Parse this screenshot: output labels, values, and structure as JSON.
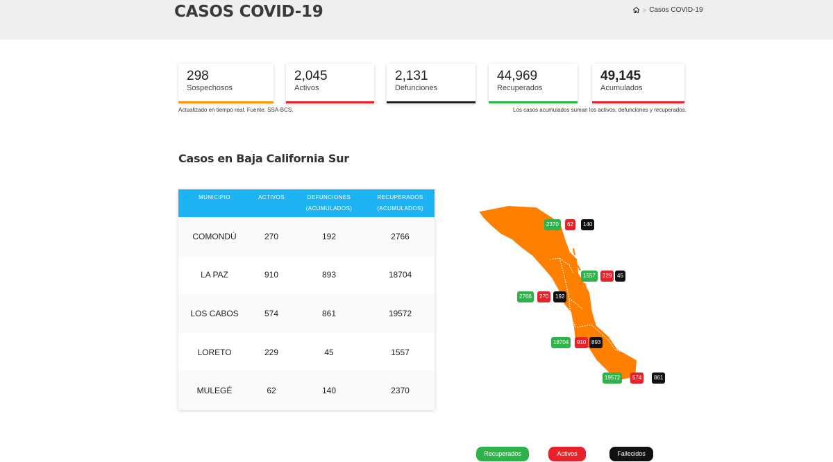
{
  "header": {
    "title": "CASOS COVID-19",
    "breadcrumb_current": "Casos COVID-19",
    "breadcrumb_sep": ">"
  },
  "stats": [
    {
      "value": "298",
      "label": "Sospechosos",
      "color": "#f39c12"
    },
    {
      "value": "2,045",
      "label": "Activos",
      "color": "#e8222a"
    },
    {
      "value": "2,131",
      "label": "Defunciones",
      "color": "#222222"
    },
    {
      "value": "44,969",
      "label": "Recuperados",
      "color": "#2db34a"
    },
    {
      "value": "49,145",
      "label": "Acumulados",
      "color": "#e8222a"
    }
  ],
  "notes": {
    "left": "Actualizado en tiempo real. Fuente: SSA-BCS.",
    "right": "Los casos acumulados suman los activos, defunciones y recuperados."
  },
  "section_title": "Casos en Baja California Sur",
  "table": {
    "headers": [
      "MUNICIPIO",
      "ACTIVOS",
      "DEFUNCIONES (ACUMULADOS)",
      "RECUPERADOS (ACUMULADOS)"
    ],
    "rows": [
      [
        "COMONDÚ",
        "270",
        "192",
        "2766"
      ],
      [
        "LA PAZ",
        "910",
        "893",
        "18704"
      ],
      [
        "LOS CABOS",
        "574",
        "861",
        "19572"
      ],
      [
        "LORETO",
        "229",
        "45",
        "1557"
      ],
      [
        "MULEGÉ",
        "62",
        "140",
        "2370"
      ]
    ]
  },
  "map_labels": {
    "mulege": [
      "2370",
      "62",
      "140"
    ],
    "loreto": [
      "1557",
      "229",
      "45"
    ],
    "comondu": [
      "2766",
      "270",
      "192"
    ],
    "lapaz": [
      "18704",
      "910",
      "893"
    ],
    "loscabos": [
      "19572",
      "574",
      "861"
    ]
  },
  "legend": {
    "recuperados": "Recuperados",
    "activos": "Activos",
    "fallecidos": "Fallecidos"
  },
  "colors": {
    "header_bg": "#efefef",
    "table_header": "#1eb4f3",
    "map_fill": "#ff7f00",
    "green": "#2db34a",
    "red": "#e8222a",
    "black": "#111111"
  },
  "icons": {
    "home": "home-icon"
  }
}
